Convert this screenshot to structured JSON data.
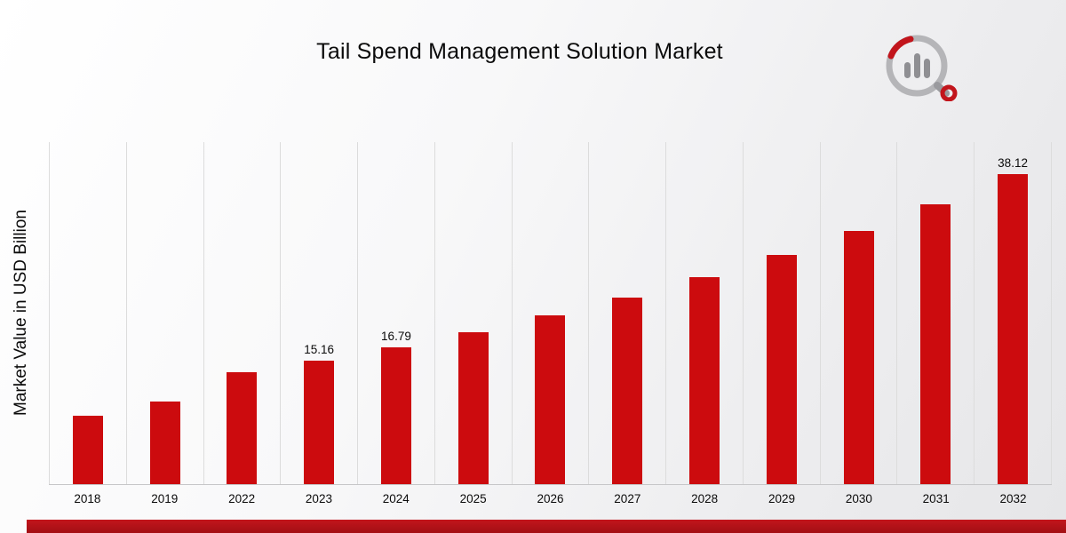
{
  "chart_data": {
    "type": "bar",
    "title": "Tail Spend Management Solution Market",
    "xlabel": "",
    "ylabel": "Market Value in USD Billion",
    "categories": [
      "2018",
      "2019",
      "2022",
      "2023",
      "2024",
      "2025",
      "2026",
      "2027",
      "2028",
      "2029",
      "2030",
      "2031",
      "2032"
    ],
    "values": [
      8.4,
      10.2,
      13.7,
      15.16,
      16.79,
      18.6,
      20.7,
      22.9,
      25.4,
      28.1,
      31.1,
      34.4,
      38.12
    ],
    "labeled_categories": [
      "2023",
      "2024",
      "2032"
    ],
    "labeled_values": {
      "2023": "15.16",
      "2024": "16.79",
      "2032": "38.12"
    },
    "axis_range": [
      0,
      42
    ],
    "grid": "vertical-only",
    "legend": "none"
  },
  "colors": {
    "bar": "#cc0b0e",
    "gridline": "#dcdcdc",
    "baseline": "#c6c6c8",
    "footer_top": "#c2151c",
    "footer_bottom": "#a30f14"
  },
  "logo": {
    "name": "market-research-chart-logo"
  }
}
